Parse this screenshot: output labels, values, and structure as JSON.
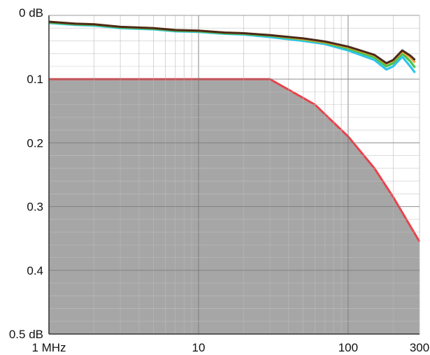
{
  "chart_data": {
    "type": "line",
    "title": "",
    "xlabel": "",
    "ylabel": "",
    "x_scale": "log",
    "xlim": [
      1,
      300
    ],
    "ylim": [
      0,
      0.5
    ],
    "y_axis_inverted": true,
    "x_ticks": [
      {
        "value": 1,
        "label": "1 MHz"
      },
      {
        "value": 10,
        "label": "10"
      },
      {
        "value": 100,
        "label": "100"
      },
      {
        "value": 300,
        "label": "300"
      }
    ],
    "y_ticks": [
      {
        "value": 0,
        "label": "0 dB"
      },
      {
        "value": 0.1,
        "label": "0.1"
      },
      {
        "value": 0.2,
        "label": "0.2"
      },
      {
        "value": 0.3,
        "label": "0.3"
      },
      {
        "value": 0.4,
        "label": "0.4"
      },
      {
        "value": 0.5,
        "label": "0.5 dB"
      }
    ],
    "grid": true,
    "legend": "none",
    "limit_region": {
      "fill_color": "#a6a6a6",
      "boundary_color": "#e8434b",
      "x": [
        1,
        30,
        60,
        100,
        150,
        200,
        300
      ],
      "y": [
        0.1,
        0.1,
        0.14,
        0.19,
        0.24,
        0.285,
        0.355
      ]
    },
    "series": [
      {
        "color": "#2ec4ea",
        "x": [
          1,
          1.5,
          2,
          3,
          5,
          7,
          10,
          15,
          20,
          30,
          50,
          70,
          100,
          150,
          180,
          200,
          230,
          260,
          280
        ],
        "y": [
          0.012,
          0.015,
          0.016,
          0.02,
          0.022,
          0.025,
          0.026,
          0.029,
          0.03,
          0.034,
          0.04,
          0.045,
          0.055,
          0.07,
          0.085,
          0.08,
          0.065,
          0.08,
          0.09
        ]
      },
      {
        "color": "#49c24a",
        "x": [
          1,
          1.5,
          2,
          3,
          5,
          7,
          10,
          15,
          20,
          30,
          50,
          70,
          100,
          150,
          180,
          200,
          230,
          260,
          280
        ],
        "y": [
          0.011,
          0.014,
          0.015,
          0.019,
          0.021,
          0.024,
          0.025,
          0.028,
          0.029,
          0.032,
          0.038,
          0.043,
          0.052,
          0.066,
          0.08,
          0.075,
          0.06,
          0.072,
          0.082
        ]
      },
      {
        "color": "#f2a23a",
        "x": [
          1,
          1.5,
          2,
          3,
          5,
          7,
          10,
          15,
          20,
          30,
          50,
          70,
          100,
          150,
          180,
          200,
          230,
          260,
          280
        ],
        "y": [
          0.01,
          0.013,
          0.014,
          0.018,
          0.02,
          0.023,
          0.024,
          0.027,
          0.028,
          0.031,
          0.037,
          0.042,
          0.05,
          0.063,
          0.076,
          0.071,
          0.057,
          0.066,
          0.074
        ]
      },
      {
        "color": "#4a2a1a",
        "x": [
          1,
          1.5,
          2,
          3,
          5,
          7,
          10,
          15,
          20,
          30,
          50,
          70,
          100,
          150,
          180,
          200,
          230,
          260,
          280
        ],
        "y": [
          0.01,
          0.013,
          0.014,
          0.018,
          0.02,
          0.023,
          0.024,
          0.027,
          0.028,
          0.031,
          0.036,
          0.041,
          0.049,
          0.062,
          0.075,
          0.07,
          0.055,
          0.063,
          0.07
        ]
      }
    ]
  }
}
